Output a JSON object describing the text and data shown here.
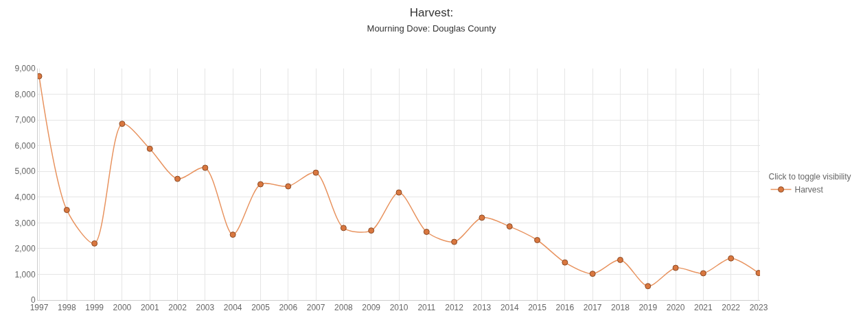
{
  "chart_data": {
    "type": "line",
    "title": "Harvest:",
    "subtitle": "Mourning Dove: Douglas County",
    "legend_title": "Click to toggle visibility",
    "categories": [
      "1997",
      "1998",
      "1999",
      "2000",
      "2001",
      "2002",
      "2003",
      "2004",
      "2005",
      "2006",
      "2007",
      "2008",
      "2009",
      "2010",
      "2011",
      "2012",
      "2013",
      "2014",
      "2015",
      "2016",
      "2017",
      "2018",
      "2019",
      "2020",
      "2021",
      "2022",
      "2023"
    ],
    "series": [
      {
        "name": "Harvest",
        "color": "#e8935f",
        "values": [
          8700,
          3500,
          2200,
          6850,
          5880,
          4710,
          5140,
          2540,
          4500,
          4420,
          4950,
          2800,
          2700,
          4180,
          2650,
          2260,
          3200,
          2860,
          2330,
          1460,
          1020,
          1560,
          540,
          1250,
          1040,
          1620,
          1050
        ]
      }
    ],
    "ylim": [
      0,
      9000
    ],
    "yticks": [
      {
        "value": 0,
        "label": "0"
      },
      {
        "value": 1000,
        "label": "1,000"
      },
      {
        "value": 2000,
        "label": "2,000"
      },
      {
        "value": 3000,
        "label": "3,000"
      },
      {
        "value": 4000,
        "label": "4,000"
      },
      {
        "value": 5000,
        "label": "5,000"
      },
      {
        "value": 6000,
        "label": "6,000"
      },
      {
        "value": 7000,
        "label": "7,000"
      },
      {
        "value": 8000,
        "label": "8,000"
      },
      {
        "value": 9000,
        "label": "9,000"
      }
    ],
    "grid": true,
    "legend": "right",
    "marker": "circle",
    "line_style": "solid"
  }
}
